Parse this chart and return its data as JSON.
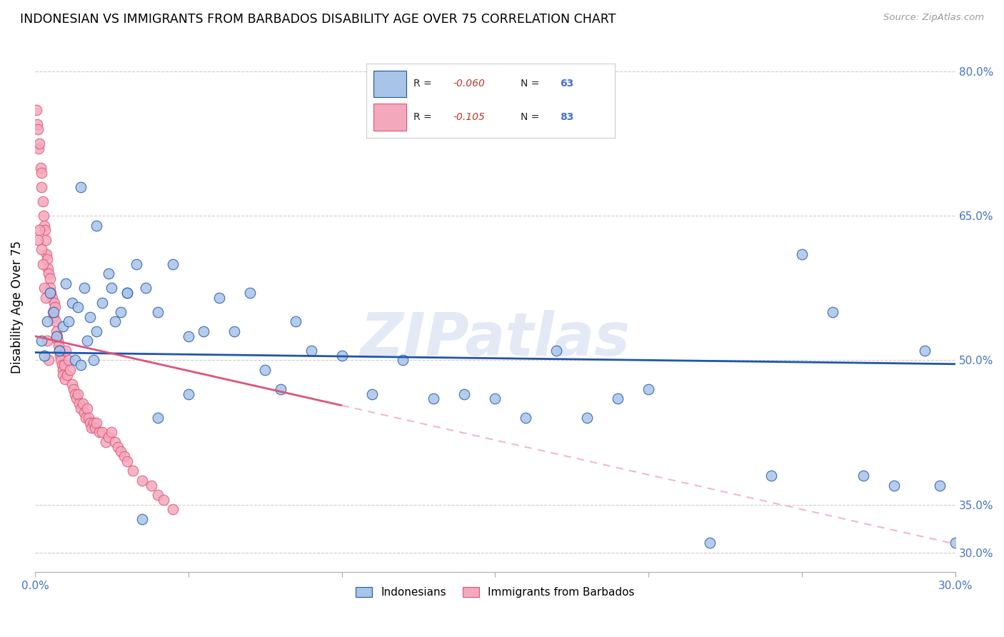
{
  "title": "INDONESIAN VS IMMIGRANTS FROM BARBADOS DISABILITY AGE OVER 75 CORRELATION CHART",
  "source": "Source: ZipAtlas.com",
  "ylabel": "Disability Age Over 75",
  "xmin": 0.0,
  "xmax": 30.0,
  "ymin": 28.0,
  "ymax": 83.0,
  "color_blue": "#a8c4e8",
  "color_pink": "#f4a8bc",
  "color_blue_line": "#2255aa",
  "color_pink_line": "#dd5577",
  "color_pink_dashed": "#f0b8cc",
  "watermark": "ZIPatlas",
  "legend_label1": "Indonesians",
  "legend_label2": "Immigrants from Barbados",
  "blue_intercept": 50.8,
  "blue_slope": -0.04,
  "pink_intercept": 52.5,
  "pink_slope": -0.72,
  "pink_solid_end": 10.0,
  "indonesian_x": [
    0.2,
    0.3,
    0.4,
    0.5,
    0.6,
    0.7,
    0.8,
    0.9,
    1.0,
    1.1,
    1.2,
    1.3,
    1.4,
    1.5,
    1.6,
    1.7,
    1.8,
    1.9,
    2.0,
    2.2,
    2.4,
    2.6,
    2.8,
    3.0,
    3.3,
    3.6,
    4.0,
    4.5,
    5.0,
    5.5,
    6.0,
    6.5,
    7.0,
    7.5,
    8.0,
    8.5,
    9.0,
    10.0,
    11.0,
    12.0,
    13.0,
    14.0,
    15.0,
    16.0,
    17.0,
    18.0,
    19.0,
    20.0,
    22.0,
    24.0,
    25.0,
    26.0,
    27.0,
    28.0,
    29.0,
    29.5,
    30.0,
    1.5,
    2.0,
    2.5,
    3.0,
    3.5,
    4.0,
    5.0
  ],
  "indonesian_y": [
    52.0,
    50.5,
    54.0,
    57.0,
    55.0,
    52.5,
    51.0,
    53.5,
    58.0,
    54.0,
    56.0,
    50.0,
    55.5,
    49.5,
    57.5,
    52.0,
    54.5,
    50.0,
    53.0,
    56.0,
    59.0,
    54.0,
    55.0,
    57.0,
    60.0,
    57.5,
    55.0,
    60.0,
    52.5,
    53.0,
    56.5,
    53.0,
    57.0,
    49.0,
    47.0,
    54.0,
    51.0,
    50.5,
    46.5,
    50.0,
    46.0,
    46.5,
    46.0,
    44.0,
    51.0,
    44.0,
    46.0,
    47.0,
    31.0,
    38.0,
    61.0,
    55.0,
    38.0,
    37.0,
    51.0,
    37.0,
    31.0,
    68.0,
    64.0,
    57.5,
    57.0,
    33.5,
    44.0,
    46.5
  ],
  "barbados_x": [
    0.05,
    0.08,
    0.1,
    0.12,
    0.15,
    0.18,
    0.2,
    0.22,
    0.25,
    0.28,
    0.3,
    0.33,
    0.35,
    0.38,
    0.4,
    0.42,
    0.45,
    0.48,
    0.5,
    0.52,
    0.55,
    0.58,
    0.6,
    0.62,
    0.65,
    0.68,
    0.7,
    0.72,
    0.75,
    0.78,
    0.8,
    0.82,
    0.85,
    0.88,
    0.9,
    0.92,
    0.95,
    0.98,
    1.0,
    1.05,
    1.1,
    1.15,
    1.2,
    1.25,
    1.3,
    1.35,
    1.4,
    1.45,
    1.5,
    1.55,
    1.6,
    1.65,
    1.7,
    1.75,
    1.8,
    1.85,
    1.9,
    1.95,
    2.0,
    2.1,
    2.2,
    2.3,
    2.4,
    2.5,
    2.6,
    2.7,
    2.8,
    2.9,
    3.0,
    3.2,
    3.5,
    3.8,
    4.0,
    4.2,
    4.5,
    0.1,
    0.15,
    0.2,
    0.25,
    0.3,
    0.35,
    0.4,
    0.45
  ],
  "barbados_y": [
    76.0,
    74.5,
    74.0,
    72.0,
    72.5,
    70.0,
    69.5,
    68.0,
    66.5,
    65.0,
    64.0,
    63.5,
    62.5,
    61.0,
    60.5,
    59.5,
    59.0,
    58.5,
    57.5,
    57.0,
    56.5,
    55.0,
    54.5,
    56.0,
    55.5,
    54.0,
    53.0,
    52.5,
    52.0,
    51.5,
    51.0,
    50.5,
    50.0,
    49.5,
    49.0,
    48.5,
    49.5,
    48.0,
    51.0,
    48.5,
    50.0,
    49.0,
    47.5,
    47.0,
    46.5,
    46.0,
    46.5,
    45.5,
    45.0,
    45.5,
    44.5,
    44.0,
    45.0,
    44.0,
    43.5,
    43.0,
    43.5,
    43.0,
    43.5,
    42.5,
    42.5,
    41.5,
    42.0,
    42.5,
    41.5,
    41.0,
    40.5,
    40.0,
    39.5,
    38.5,
    37.5,
    37.0,
    36.0,
    35.5,
    34.5,
    62.5,
    63.5,
    61.5,
    60.0,
    57.5,
    56.5,
    52.0,
    50.0
  ]
}
